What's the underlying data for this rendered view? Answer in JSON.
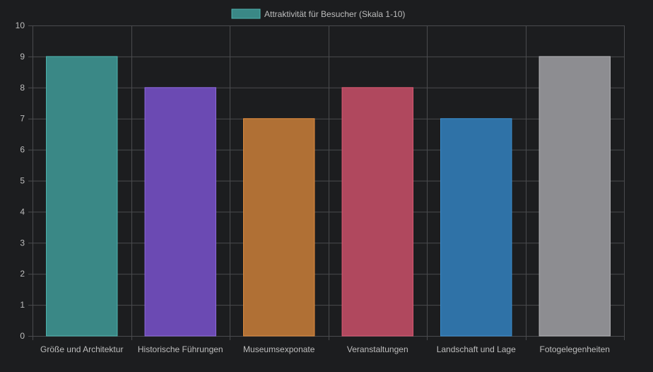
{
  "chart_data": {
    "type": "bar",
    "title": "",
    "xlabel": "",
    "ylabel": "",
    "categories": [
      "Größe und Architektur",
      "Historische Führungen",
      "Museumsexponate",
      "Veranstaltungen",
      "Landschaft und Lage",
      "Fotogelegenheiten"
    ],
    "series": [
      {
        "name": "Attraktivität für Besucher (Skala 1-10)",
        "values": [
          9,
          8,
          7,
          8,
          7,
          9
        ]
      }
    ],
    "ylim": [
      0,
      10
    ],
    "yticks": [
      "0",
      "1",
      "2",
      "3",
      "4",
      "5",
      "6",
      "7",
      "8",
      "9",
      "10"
    ],
    "grid": true,
    "legend_position": "top-center"
  },
  "colors": {
    "background": "#1c1d1f",
    "grid": "#4a4b4e",
    "text": "#bdbdbd",
    "legend_swatch_fill": "#3a8886",
    "legend_swatch_border": "#4fb5b0",
    "bar_fills": [
      "#3a8886",
      "#6b4ab3",
      "#b07035",
      "#b0485e",
      "#2f72a7",
      "#8d8d91"
    ],
    "bar_borders": [
      "#4fb5b0",
      "#8e69dd",
      "#e08d3f",
      "#dc5a74",
      "#3b8fd0",
      "#b3b3b7"
    ]
  }
}
